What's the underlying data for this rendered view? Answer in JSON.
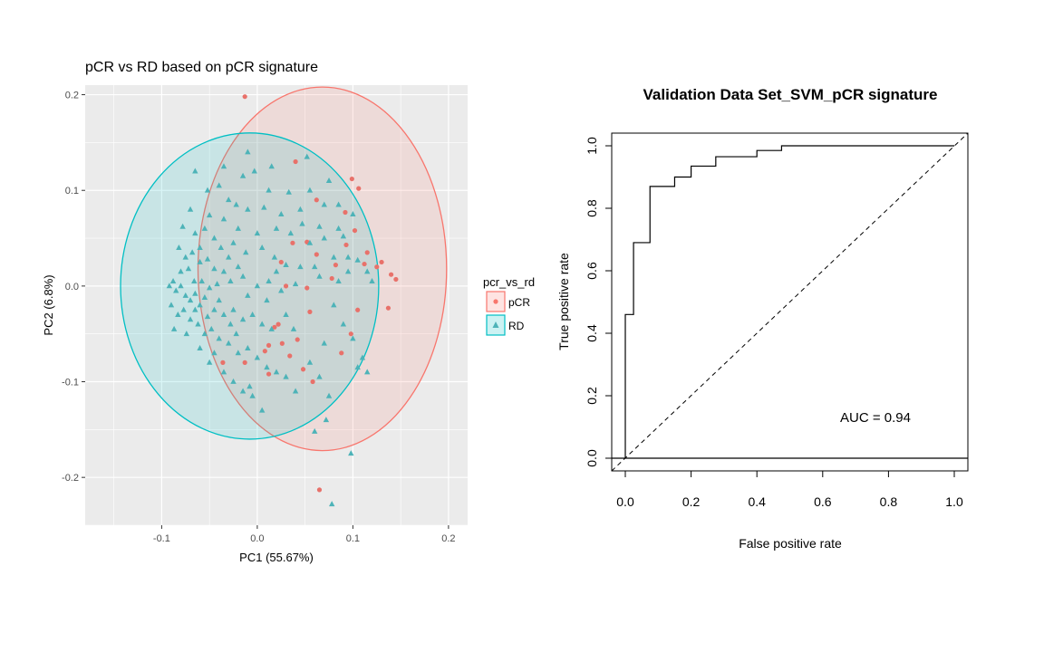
{
  "chart_data": [
    {
      "type": "scatter",
      "title": "pCR vs RD based on pCR signature",
      "xlabel": "PC1 (55.67%)",
      "ylabel": "PC2 (6.8%)",
      "xlim": [
        -0.18,
        0.22
      ],
      "ylim": [
        -0.25,
        0.21
      ],
      "x_ticks": [
        -0.1,
        0.0,
        0.1,
        0.2
      ],
      "x_tick_labels": [
        "-0.1",
        "0.0",
        "0.1",
        "0.2"
      ],
      "y_ticks": [
        -0.2,
        -0.1,
        0.0,
        0.1,
        0.2
      ],
      "y_tick_labels": [
        "-0.2",
        "-0.1",
        "0.0",
        "0.1",
        "0.2"
      ],
      "grid": true,
      "legend": {
        "title": "pcr_vs_rd",
        "position": "right",
        "entries": [
          "pCR",
          "RD"
        ]
      },
      "colors": {
        "pCR": "#F8766D",
        "RD": "#00BFC4",
        "panel": "#EBEBEB",
        "grid": "#FFFFFF"
      },
      "ellipses": [
        {
          "group": "pCR",
          "cx": 0.068,
          "cy": 0.018,
          "rx": 0.13,
          "ry": 0.19
        },
        {
          "group": "RD",
          "cx": -0.008,
          "cy": 0.0,
          "rx": 0.135,
          "ry": 0.16
        }
      ],
      "series": [
        {
          "name": "pCR",
          "marker": "circle",
          "points": [
            [
              -0.013,
              0.198
            ],
            [
              0.04,
              0.13
            ],
            [
              0.099,
              0.112
            ],
            [
              0.106,
              0.102
            ],
            [
              0.062,
              0.09
            ],
            [
              0.092,
              0.077
            ],
            [
              0.102,
              0.058
            ],
            [
              0.093,
              0.043
            ],
            [
              0.037,
              0.045
            ],
            [
              0.052,
              0.046
            ],
            [
              0.025,
              0.025
            ],
            [
              0.062,
              0.033
            ],
            [
              0.082,
              0.022
            ],
            [
              0.112,
              0.023
            ],
            [
              0.115,
              0.035
            ],
            [
              0.125,
              0.02
            ],
            [
              0.13,
              0.025
            ],
            [
              0.14,
              0.012
            ],
            [
              0.145,
              0.007
            ],
            [
              0.078,
              0.008
            ],
            [
              0.052,
              -0.002
            ],
            [
              0.03,
              0.0
            ],
            [
              0.055,
              -0.027
            ],
            [
              0.022,
              -0.04
            ],
            [
              0.012,
              -0.062
            ],
            [
              0.034,
              -0.073
            ],
            [
              0.026,
              -0.06
            ],
            [
              0.042,
              -0.056
            ],
            [
              0.018,
              -0.043
            ],
            [
              0.098,
              -0.05
            ],
            [
              0.058,
              -0.1
            ],
            [
              0.008,
              -0.068
            ],
            [
              0.065,
              -0.213
            ],
            [
              -0.036,
              -0.08
            ],
            [
              -0.013,
              -0.08
            ],
            [
              0.088,
              -0.07
            ],
            [
              0.137,
              -0.023
            ],
            [
              0.105,
              -0.025
            ],
            [
              0.012,
              -0.092
            ],
            [
              0.048,
              -0.087
            ]
          ]
        },
        {
          "name": "RD",
          "marker": "triangle",
          "points": [
            [
              -0.065,
              0.12
            ],
            [
              -0.003,
              0.12
            ],
            [
              0.015,
              0.125
            ],
            [
              -0.04,
              0.105
            ],
            [
              -0.015,
              0.115
            ],
            [
              0.052,
              0.135
            ],
            [
              0.075,
              0.11
            ],
            [
              0.033,
              0.098
            ],
            [
              -0.052,
              0.1
            ],
            [
              -0.03,
              0.09
            ],
            [
              -0.022,
              0.085
            ],
            [
              -0.01,
              0.08
            ],
            [
              0.007,
              0.082
            ],
            [
              0.025,
              0.075
            ],
            [
              0.047,
              0.065
            ],
            [
              0.065,
              0.062
            ],
            [
              0.085,
              0.06
            ],
            [
              0.09,
              0.052
            ],
            [
              -0.07,
              0.08
            ],
            [
              -0.05,
              0.074
            ],
            [
              -0.035,
              0.07
            ],
            [
              -0.02,
              0.06
            ],
            [
              0.0,
              0.055
            ],
            [
              0.02,
              0.06
            ],
            [
              0.035,
              0.055
            ],
            [
              0.055,
              0.045
            ],
            [
              0.07,
              0.05
            ],
            [
              0.08,
              0.03
            ],
            [
              0.095,
              0.03
            ],
            [
              0.105,
              0.027
            ],
            [
              0.115,
              0.015
            ],
            [
              0.12,
              0.005
            ],
            [
              -0.078,
              0.062
            ],
            [
              -0.065,
              0.055
            ],
            [
              -0.055,
              0.06
            ],
            [
              -0.045,
              0.05
            ],
            [
              -0.038,
              0.04
            ],
            [
              -0.025,
              0.045
            ],
            [
              -0.012,
              0.035
            ],
            [
              0.005,
              0.04
            ],
            [
              0.018,
              0.03
            ],
            [
              0.03,
              0.022
            ],
            [
              0.045,
              0.02
            ],
            [
              0.065,
              0.01
            ],
            [
              0.085,
              0.005
            ],
            [
              -0.082,
              0.04
            ],
            [
              -0.075,
              0.03
            ],
            [
              -0.068,
              0.035
            ],
            [
              -0.06,
              0.025
            ],
            [
              -0.052,
              0.028
            ],
            [
              -0.045,
              0.018
            ],
            [
              -0.035,
              0.015
            ],
            [
              -0.028,
              0.005
            ],
            [
              -0.015,
              0.01
            ],
            [
              0.0,
              0.0
            ],
            [
              0.012,
              0.005
            ],
            [
              0.025,
              -0.005
            ],
            [
              0.04,
              0.002
            ],
            [
              -0.088,
              0.005
            ],
            [
              -0.085,
              -0.005
            ],
            [
              -0.08,
              0.0
            ],
            [
              -0.075,
              -0.01
            ],
            [
              -0.07,
              -0.015
            ],
            [
              -0.065,
              -0.008
            ],
            [
              -0.06,
              -0.02
            ],
            [
              -0.055,
              -0.012
            ],
            [
              -0.045,
              -0.025
            ],
            [
              -0.04,
              -0.015
            ],
            [
              -0.035,
              -0.03
            ],
            [
              -0.025,
              -0.025
            ],
            [
              -0.015,
              -0.035
            ],
            [
              -0.005,
              -0.03
            ],
            [
              0.005,
              -0.04
            ],
            [
              0.015,
              -0.045
            ],
            [
              -0.09,
              -0.02
            ],
            [
              -0.083,
              -0.03
            ],
            [
              -0.077,
              -0.025
            ],
            [
              -0.07,
              -0.035
            ],
            [
              -0.062,
              -0.04
            ],
            [
              -0.055,
              -0.05
            ],
            [
              -0.048,
              -0.045
            ],
            [
              -0.04,
              -0.055
            ],
            [
              -0.03,
              -0.06
            ],
            [
              -0.02,
              -0.07
            ],
            [
              -0.01,
              -0.065
            ],
            [
              0.0,
              -0.075
            ],
            [
              0.01,
              -0.085
            ],
            [
              0.02,
              -0.09
            ],
            [
              -0.05,
              -0.08
            ],
            [
              -0.035,
              -0.09
            ],
            [
              -0.025,
              -0.1
            ],
            [
              -0.015,
              -0.11
            ],
            [
              -0.005,
              -0.115
            ],
            [
              0.005,
              -0.13
            ],
            [
              -0.008,
              -0.105
            ],
            [
              0.03,
              -0.095
            ],
            [
              0.055,
              -0.08
            ],
            [
              0.07,
              -0.06
            ],
            [
              0.09,
              -0.04
            ],
            [
              0.1,
              -0.055
            ],
            [
              0.11,
              -0.075
            ],
            [
              0.115,
              -0.09
            ],
            [
              0.075,
              -0.115
            ],
            [
              0.072,
              -0.14
            ],
            [
              0.06,
              -0.152
            ],
            [
              0.098,
              -0.175
            ],
            [
              0.078,
              -0.228
            ],
            [
              0.04,
              -0.11
            ],
            [
              0.105,
              -0.085
            ],
            [
              0.065,
              -0.095
            ],
            [
              -0.066,
              0.005
            ],
            [
              -0.05,
              -0.002
            ],
            [
              -0.02,
              0.02
            ],
            [
              -0.092,
              0.0
            ],
            [
              -0.087,
              -0.045
            ],
            [
              -0.074,
              -0.05
            ],
            [
              0.03,
              -0.03
            ],
            [
              0.08,
              -0.02
            ],
            [
              0.1,
              0.075
            ],
            [
              0.06,
              0.02
            ],
            [
              0.055,
              0.1
            ],
            [
              -0.01,
              0.14
            ],
            [
              0.012,
              0.1
            ],
            [
              -0.035,
              0.125
            ],
            [
              -0.06,
              0.04
            ],
            [
              -0.03,
              0.03
            ],
            [
              0.045,
              0.08
            ],
            [
              0.07,
              0.085
            ],
            [
              0.085,
              0.085
            ],
            [
              0.095,
              0.015
            ],
            [
              -0.022,
              -0.05
            ],
            [
              -0.06,
              -0.065
            ],
            [
              -0.045,
              -0.07
            ],
            [
              0.02,
              0.015
            ],
            [
              0.01,
              -0.015
            ],
            [
              -0.01,
              -0.01
            ],
            [
              0.038,
              -0.045
            ],
            [
              -0.08,
              0.015
            ],
            [
              -0.072,
              0.018
            ],
            [
              -0.058,
              0.005
            ],
            [
              -0.042,
              0.002
            ],
            [
              -0.052,
              -0.032
            ],
            [
              -0.028,
              -0.04
            ],
            [
              -0.065,
              -0.025
            ]
          ]
        }
      ]
    },
    {
      "type": "line",
      "title": "Validation Data Set_SVM_pCR signature",
      "xlabel": "False positive rate",
      "ylabel": "True positive rate",
      "xlim": [
        0,
        1
      ],
      "ylim": [
        0,
        1
      ],
      "x_ticks": [
        0,
        0.2,
        0.4,
        0.6,
        0.8,
        1.0
      ],
      "x_tick_labels": [
        "0.0",
        "0.2",
        "0.4",
        "0.6",
        "0.8",
        "1.0"
      ],
      "y_ticks": [
        0,
        0.2,
        0.4,
        0.6,
        0.8,
        1.0
      ],
      "y_tick_labels": [
        "0.0",
        "0.2",
        "0.4",
        "0.6",
        "0.8",
        "1.0"
      ],
      "grid": false,
      "annotation": "AUC = 0.94",
      "series": [
        {
          "name": "ROC",
          "x": [
            0,
            0,
            0.025,
            0.025,
            0.075,
            0.075,
            0.15,
            0.15,
            0.2,
            0.2,
            0.275,
            0.275,
            0.4,
            0.4,
            0.475,
            0.475,
            1.0
          ],
          "y": [
            0,
            0.46,
            0.46,
            0.69,
            0.69,
            0.87,
            0.87,
            0.9,
            0.9,
            0.935,
            0.935,
            0.965,
            0.965,
            0.985,
            0.985,
            1.0,
            1.0
          ]
        },
        {
          "name": "chance",
          "style": "dashed",
          "x": [
            0,
            1
          ],
          "y": [
            0,
            1
          ]
        }
      ]
    }
  ]
}
